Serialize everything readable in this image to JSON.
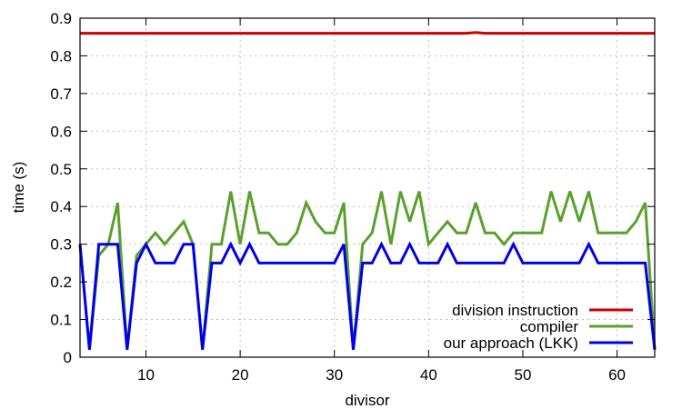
{
  "chart_data": {
    "type": "line",
    "title": "",
    "xlabel": "divisor",
    "ylabel": "time (s)",
    "xlim": [
      3,
      64
    ],
    "ylim": [
      0,
      0.9
    ],
    "xticks": [
      10,
      20,
      30,
      40,
      50,
      60
    ],
    "yticks": [
      0,
      0.1,
      0.2,
      0.3,
      0.4,
      0.5,
      0.6,
      0.7,
      0.8,
      0.9
    ],
    "grid": true,
    "legend_position": "bottom-right",
    "x": [
      3,
      4,
      5,
      6,
      7,
      8,
      9,
      10,
      11,
      12,
      13,
      14,
      15,
      16,
      17,
      18,
      19,
      20,
      21,
      22,
      23,
      24,
      25,
      26,
      27,
      28,
      29,
      30,
      31,
      32,
      33,
      34,
      35,
      36,
      37,
      38,
      39,
      40,
      41,
      42,
      43,
      44,
      45,
      46,
      47,
      48,
      49,
      50,
      51,
      52,
      53,
      54,
      55,
      56,
      57,
      58,
      59,
      60,
      61,
      62,
      63,
      64
    ],
    "series": [
      {
        "name": "division instruction",
        "color": "#cc0000",
        "values": [
          0.86,
          0.86,
          0.86,
          0.86,
          0.86,
          0.86,
          0.86,
          0.86,
          0.86,
          0.86,
          0.86,
          0.86,
          0.86,
          0.86,
          0.86,
          0.86,
          0.86,
          0.86,
          0.86,
          0.86,
          0.86,
          0.86,
          0.86,
          0.86,
          0.86,
          0.86,
          0.86,
          0.86,
          0.86,
          0.86,
          0.86,
          0.86,
          0.86,
          0.86,
          0.86,
          0.86,
          0.86,
          0.86,
          0.86,
          0.86,
          0.86,
          0.86,
          0.862,
          0.86,
          0.86,
          0.86,
          0.86,
          0.86,
          0.86,
          0.86,
          0.86,
          0.86,
          0.86,
          0.86,
          0.86,
          0.86,
          0.86,
          0.86,
          0.86,
          0.86,
          0.86,
          0.86
        ]
      },
      {
        "name": "compiler",
        "color": "#5aa02c",
        "values": [
          0.3,
          0.02,
          0.27,
          0.3,
          0.41,
          0.02,
          0.27,
          0.3,
          0.33,
          0.3,
          0.33,
          0.36,
          0.3,
          0.02,
          0.3,
          0.3,
          0.44,
          0.3,
          0.44,
          0.33,
          0.33,
          0.3,
          0.3,
          0.33,
          0.41,
          0.36,
          0.33,
          0.33,
          0.41,
          0.02,
          0.3,
          0.33,
          0.44,
          0.3,
          0.44,
          0.36,
          0.44,
          0.3,
          0.33,
          0.36,
          0.33,
          0.33,
          0.41,
          0.33,
          0.33,
          0.3,
          0.33,
          0.33,
          0.33,
          0.33,
          0.44,
          0.36,
          0.44,
          0.36,
          0.44,
          0.33,
          0.33,
          0.33,
          0.33,
          0.36,
          0.41,
          0.02
        ]
      },
      {
        "name": "our approach (LKK)",
        "color": "#0000ee",
        "values": [
          0.3,
          0.02,
          0.3,
          0.3,
          0.3,
          0.02,
          0.25,
          0.3,
          0.25,
          0.25,
          0.25,
          0.3,
          0.3,
          0.02,
          0.25,
          0.25,
          0.3,
          0.25,
          0.3,
          0.25,
          0.25,
          0.25,
          0.25,
          0.25,
          0.25,
          0.25,
          0.25,
          0.25,
          0.3,
          0.02,
          0.25,
          0.25,
          0.3,
          0.25,
          0.25,
          0.3,
          0.25,
          0.25,
          0.25,
          0.3,
          0.25,
          0.25,
          0.25,
          0.25,
          0.25,
          0.25,
          0.3,
          0.25,
          0.25,
          0.25,
          0.25,
          0.25,
          0.25,
          0.25,
          0.3,
          0.25,
          0.25,
          0.25,
          0.25,
          0.25,
          0.25,
          0.02
        ]
      }
    ]
  }
}
